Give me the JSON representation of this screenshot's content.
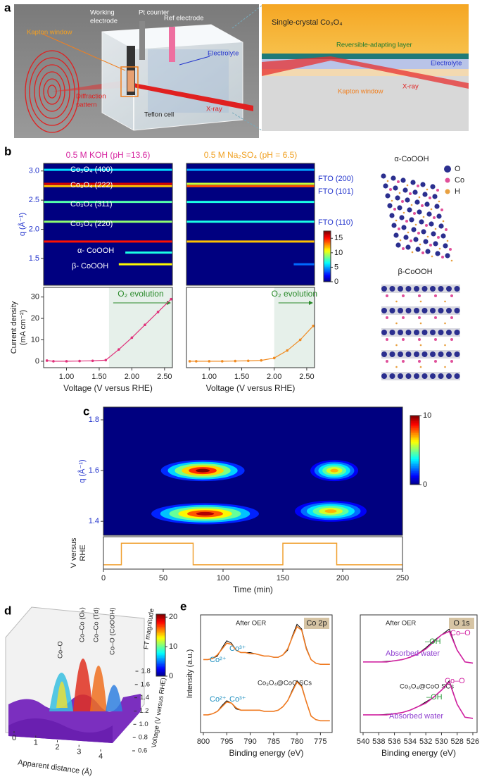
{
  "panel_labels": [
    "a",
    "b",
    "c",
    "d",
    "e"
  ],
  "schematic": {
    "working_electrode": [
      "Working",
      "electrode"
    ],
    "pt_counter": "Pt counter",
    "ref_electrode": "Ref electrode",
    "kapton_window": "Kapton window",
    "electrolyte": "Electrolyte",
    "diffraction_pattern": [
      "Diffraction",
      "pattern"
    ],
    "teflon_cell": "Teflon cell",
    "xray": "X-ray",
    "inset": {
      "crystal": "Single-crystal Co₃O₄",
      "layer": "Reversible-adapting layer",
      "electrolyte": "Electrolyte",
      "kapton_window": "Kapton window",
      "xray": "X-ray"
    }
  },
  "structures": {
    "alpha": "α-CoOOH",
    "beta": "β-CoOOH",
    "legend": [
      "O",
      "Co",
      "H"
    ],
    "legend_colors": [
      "#2b2f8f",
      "#e0509a",
      "#e8a040"
    ]
  },
  "chart_data": [
    {
      "type": "heatmap",
      "title": "0.5 M KOH (pH =13.6)",
      "title_color": "#d6249f",
      "ylabel": "q (Å⁻¹)",
      "xlim": [
        0.65,
        2.62
      ],
      "ylim": [
        1.04,
        3.13
      ],
      "yticks": [
        1.5,
        {
          "value": 2,
          "label": "2.0"
        },
        2.5,
        {
          "value": 3,
          "label": "3.0"
        }
      ],
      "bands": {
        "q": [
          3.02,
          2.78,
          2.74,
          2.47,
          2.13,
          1.79,
          1.6,
          1.4
        ],
        "intensity": [
          6,
          16,
          12,
          8,
          9,
          15,
          7,
          11
        ],
        "onset": [
          0.65,
          0.65,
          0.65,
          0.65,
          0.65,
          0.65,
          1.9,
          1.8
        ]
      },
      "annotations": [
        "Co₃O₄ (400)",
        "Co₃O₄ (222)",
        "Co₃O₄ (311)",
        "Co₃O₄ (220)",
        "α- CoOOH",
        "β- CoOOH"
      ]
    },
    {
      "type": "heatmap",
      "title": "0.5 M Na₂SO₄ (pH = 6.5)",
      "title_color": "#f0a020",
      "xlim": [
        0.65,
        2.62
      ],
      "ylim": [
        1.04,
        3.13
      ],
      "bands": {
        "q": [
          3.02,
          2.78,
          2.74,
          2.47,
          2.13,
          1.79,
          1.4
        ],
        "intensity": [
          5,
          10,
          14,
          7,
          7,
          12,
          4
        ],
        "onset": [
          0.65,
          0.65,
          0.65,
          0.65,
          0.65,
          0.65,
          2.3
        ]
      },
      "annotations": [
        "FTO (200)",
        "FTO (101)",
        "FTO (110)"
      ]
    },
    {
      "type": "line",
      "ylabel": [
        "Current density",
        "(mA cm⁻²)"
      ],
      "xlabel": "Voltage (V versus RHE)",
      "xlim": [
        0.65,
        2.62
      ],
      "ylim": [
        -3,
        34.5
      ],
      "xticks": [
        {
          "value": 1,
          "label": "1.00"
        },
        {
          "value": 1.5,
          "label": "1.50"
        },
        {
          "value": 2,
          "label": "2.00"
        },
        {
          "value": 2.5,
          "label": "2.50"
        }
      ],
      "yticks": [
        0,
        10,
        20,
        30
      ],
      "x": [
        0.7,
        0.8,
        1.0,
        1.2,
        1.4,
        1.6,
        1.8,
        2.0,
        2.2,
        2.4,
        2.6
      ],
      "series": [
        {
          "color": "#e0307a",
          "values": [
            0.3,
            0,
            0,
            0.1,
            0.2,
            0.5,
            5.5,
            11,
            17,
            23,
            29
          ]
        }
      ],
      "shade_from": 1.65,
      "annotation": "O₂ evolution"
    },
    {
      "type": "line",
      "xlabel": "Voltage (V versus RHE)",
      "xlim": [
        0.65,
        2.62
      ],
      "ylim": [
        -3,
        34.5
      ],
      "xticks": [
        {
          "value": 1,
          "label": "1.00"
        },
        {
          "value": 1.5,
          "label": "1.50"
        },
        {
          "value": 2,
          "label": "2.00"
        },
        {
          "value": 2.5,
          "label": "2.50"
        }
      ],
      "x": [
        0.7,
        0.8,
        1.0,
        1.2,
        1.4,
        1.6,
        1.8,
        2.0,
        2.2,
        2.4,
        2.6
      ],
      "series": [
        {
          "color": "#f08a20",
          "values": [
            0,
            0,
            0,
            0,
            0.1,
            0.2,
            0.4,
            1.5,
            5,
            10,
            16.5
          ]
        }
      ],
      "shade_from": 2.0,
      "annotation": "O₂ evolution"
    },
    {
      "type": "colorbar",
      "ylim": [
        0,
        17.5
      ],
      "yticks": [
        0,
        5,
        10,
        15
      ]
    },
    {
      "type": "heatmap",
      "ylabel": "q (Å⁻¹)",
      "xlim": [
        0,
        250
      ],
      "ylim": [
        1.345,
        1.85
      ],
      "yticks": [
        1.4,
        1.6,
        1.8
      ],
      "spots": {
        "time": [
          83,
          193,
          85,
          190
        ],
        "duration": [
          70,
          40,
          90,
          60
        ],
        "q": [
          1.6,
          1.6,
          1.43,
          1.44
        ],
        "intensity": [
          10,
          7,
          9.5,
          7
        ]
      }
    },
    {
      "type": "line",
      "ylabel": [
        "V versus",
        "RHE"
      ],
      "xlabel": "Time (min)",
      "xlim": [
        0,
        250
      ],
      "ylim": [
        -0.2,
        1.3
      ],
      "xticks": [
        0,
        50,
        100,
        150,
        200,
        250
      ],
      "x": [
        0,
        15,
        15,
        75,
        75,
        150,
        150,
        195,
        195,
        250
      ],
      "values": [
        0,
        0,
        1,
        1,
        0,
        0,
        1,
        1,
        0,
        0
      ],
      "color": "#f0a030"
    },
    {
      "type": "colorbar",
      "ylim": [
        0,
        10
      ],
      "yticks": [
        0,
        10
      ]
    },
    {
      "type": "surface",
      "xlabel": "Apparent distance (Å)",
      "ylabel": "Voltage (V versus RHE)",
      "zlabel": "FT magnitude",
      "xlim": [
        0,
        4
      ],
      "ylim": [
        0.6,
        1.8
      ],
      "xticks": [
        0,
        1,
        2,
        3,
        4
      ],
      "yticks": [
        0.6,
        0.8,
        {
          "value": 1,
          "label": "1.0"
        },
        1.2,
        1.4,
        1.6,
        1.8
      ],
      "annotations": [
        "Co–O",
        "Co–Co (Oₕ)",
        "Co–Co (Td)",
        "Co–O (CoOOH)"
      ]
    },
    {
      "type": "colorbar",
      "ylim": [
        0,
        21
      ],
      "yticks": [
        0,
        10,
        20
      ]
    },
    {
      "type": "spectrum",
      "tag": "Co 2p",
      "ylabel": "Intensity (a.u.)",
      "xlabel": "Binding energy (eV)",
      "xlim": [
        800.6,
        772.5
      ],
      "ylim": [
        0,
        10
      ],
      "xticks": [
        800,
        795,
        790,
        785,
        780,
        775
      ],
      "x": [
        800,
        799,
        798,
        797,
        796,
        795,
        794,
        793,
        792,
        791,
        790,
        789,
        788,
        787,
        786,
        785,
        784,
        783,
        782,
        781,
        780,
        779,
        778,
        777,
        776,
        775,
        774,
        773
      ],
      "series": [
        {
          "name": "After OER",
          "color": "#000000",
          "values": [
            6.2,
            6.2,
            6.3,
            6.5,
            7.2,
            7.8,
            7.6,
            7.0,
            6.8,
            6.8,
            6.8,
            6.7,
            6.6,
            6.5,
            6.5,
            6.4,
            6.4,
            6.6,
            7.0,
            8.2,
            9.2,
            8.8,
            7.2,
            6.2,
            5.9,
            5.8,
            5.8,
            5.8
          ]
        },
        {
          "color": "#f07a20",
          "values": [
            6.2,
            6.2,
            6.3,
            6.6,
            7.1,
            7.6,
            7.5,
            7.0,
            6.8,
            6.8,
            6.7,
            6.7,
            6.6,
            6.5,
            6.5,
            6.4,
            6.4,
            6.6,
            7.1,
            8.1,
            9.0,
            8.7,
            7.1,
            6.2,
            5.9,
            5.8,
            5.8,
            5.8
          ]
        },
        {
          "name": "Co₃O₄@CoO SCs",
          "color": "#000000",
          "values": [
            1.5,
            1.5,
            1.6,
            1.8,
            2.3,
            2.7,
            2.5,
            2.0,
            1.9,
            1.9,
            1.9,
            1.9,
            1.9,
            1.8,
            1.8,
            1.8,
            1.9,
            2.2,
            2.7,
            3.6,
            4.4,
            4.0,
            2.6,
            1.4,
            1.1,
            1.0,
            1.0,
            1.0
          ]
        },
        {
          "color": "#f07a20",
          "values": [
            1.5,
            1.5,
            1.6,
            1.8,
            2.2,
            2.6,
            2.5,
            2.1,
            1.9,
            1.9,
            1.9,
            1.9,
            1.9,
            1.8,
            1.8,
            1.8,
            1.9,
            2.2,
            2.7,
            3.5,
            4.3,
            3.9,
            2.6,
            1.4,
            1.1,
            1.0,
            1.0,
            1.0
          ]
        }
      ],
      "annotations": [
        "Co²⁺",
        "Co³⁺",
        "Co²⁺",
        "Co³⁺"
      ]
    },
    {
      "type": "spectrum",
      "tag": "O 1s",
      "xlabel": "Binding energy (eV)",
      "xlim": [
        540.36,
        525.46
      ],
      "ylim": [
        0,
        10
      ],
      "xticks": [
        540,
        538,
        536,
        534,
        532,
        530,
        528,
        526
      ],
      "x": [
        540,
        539,
        538,
        537,
        536,
        535,
        534,
        533,
        532,
        531,
        530,
        529,
        528,
        527,
        526
      ],
      "series": [
        {
          "name": "After OER",
          "color": "#000000",
          "values": [
            6.0,
            6.0,
            6.0,
            6.05,
            6.1,
            6.2,
            6.4,
            6.7,
            7.2,
            7.8,
            8.3,
            8.8,
            7.0,
            6.0,
            5.9
          ]
        },
        {
          "color": "#d020a0",
          "values": [
            6.0,
            6.0,
            6.0,
            6.0,
            6.1,
            6.2,
            6.4,
            6.7,
            7.1,
            7.7,
            8.3,
            8.6,
            7.0,
            6.0,
            5.9
          ]
        },
        {
          "name": "Co₃O₄@CoO SCs",
          "color": "#000000",
          "values": [
            1.5,
            1.5,
            1.5,
            1.55,
            1.6,
            1.7,
            1.9,
            2.2,
            2.6,
            3.0,
            3.6,
            4.4,
            2.4,
            1.3,
            1.2
          ]
        },
        {
          "color": "#d020a0",
          "values": [
            1.5,
            1.5,
            1.5,
            1.5,
            1.6,
            1.7,
            1.9,
            2.2,
            2.5,
            3.0,
            3.6,
            4.3,
            2.4,
            1.3,
            1.2
          ]
        }
      ],
      "annotations": [
        "–OH",
        "Co–O",
        "Absorbed water",
        "Co–O",
        "–OH",
        "Absorbed water"
      ]
    }
  ]
}
